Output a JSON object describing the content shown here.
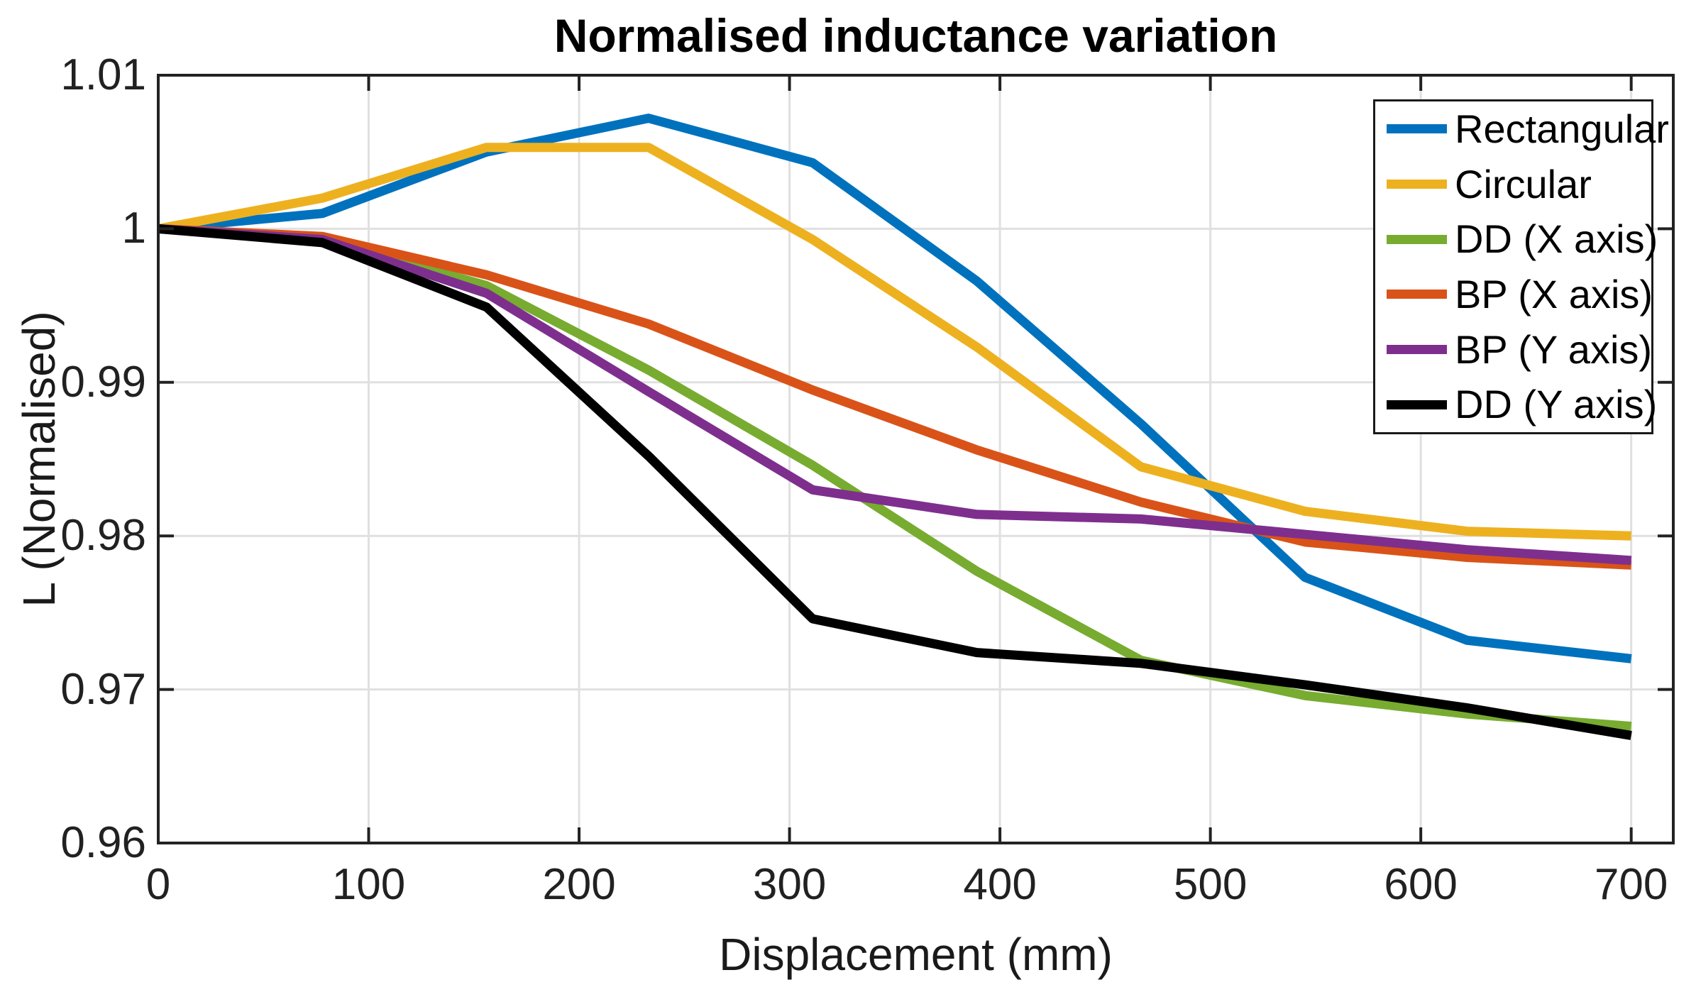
{
  "title": "Normalised inductance variation",
  "axes": {
    "xlabel": "Displacement (mm)",
    "ylabel": "L (Normalised)"
  },
  "colors": {
    "background": "#FFFFFF",
    "axis": "#222222",
    "grid": "#E0E0E0",
    "tick_text": "#212121",
    "blue": "#0072BD",
    "yellow": "#EDB120",
    "green": "#77AC30",
    "orange": "#D95319",
    "purple": "#7E2F8E",
    "black": "#000000"
  },
  "chart_data": {
    "type": "line",
    "title": "Normalised inductance variation",
    "xlabel": "Displacement (mm)",
    "ylabel": "L (Normalised)",
    "x": [
      0,
      78,
      156,
      233,
      311,
      389,
      467,
      545,
      622,
      700
    ],
    "series": [
      {
        "name": "Rectangular",
        "color": "#0072BD",
        "values": [
          1.0,
          1.001,
          1.005,
          1.0072,
          1.0043,
          0.9966,
          0.9873,
          0.9773,
          0.9732,
          0.972
        ]
      },
      {
        "name": "Circular",
        "color": "#EDB120",
        "values": [
          1.0,
          1.002,
          1.0053,
          1.0053,
          0.9993,
          0.9923,
          0.9845,
          0.9816,
          0.9803,
          0.98
        ]
      },
      {
        "name": "DD (X axis)",
        "color": "#77AC30",
        "values": [
          1.0,
          0.9993,
          0.9963,
          0.9908,
          0.9846,
          0.9777,
          0.9719,
          0.9696,
          0.9684,
          0.9676
        ]
      },
      {
        "name": "BP (X axis)",
        "color": "#D95319",
        "values": [
          1.0,
          0.9995,
          0.997,
          0.9938,
          0.9895,
          0.9856,
          0.9822,
          0.9796,
          0.9786,
          0.9781
        ]
      },
      {
        "name": "BP (Y axis)",
        "color": "#7E2F8E",
        "values": [
          1.0,
          0.9993,
          0.9958,
          0.9894,
          0.983,
          0.9814,
          0.9811,
          0.9801,
          0.9791,
          0.9784
        ]
      },
      {
        "name": "DD (Y axis)",
        "color": "#000000",
        "values": [
          1.0,
          0.9991,
          0.9949,
          0.9852,
          0.9746,
          0.9724,
          0.9717,
          0.9703,
          0.9688,
          0.967
        ]
      }
    ],
    "xlim": [
      0,
      720
    ],
    "ylim": [
      0.96,
      1.01
    ],
    "x_tick_values": [
      0,
      100,
      200,
      300,
      400,
      500,
      600,
      700
    ],
    "x_tick_labels": [
      "0",
      "100",
      "200",
      "300",
      "400",
      "500",
      "600",
      "700"
    ],
    "y_tick_values": [
      0.96,
      0.97,
      0.98,
      0.99,
      1,
      1.01
    ],
    "y_tick_labels": [
      "0.96",
      "0.97",
      "0.98",
      "0.99",
      "1",
      "1.01"
    ],
    "grid": true,
    "legend_position": "top-right",
    "legend_order": [
      "Rectangular",
      "Circular",
      "DD (X axis)",
      "BP (X axis)",
      "BP (Y axis)",
      "DD (Y axis)"
    ]
  }
}
